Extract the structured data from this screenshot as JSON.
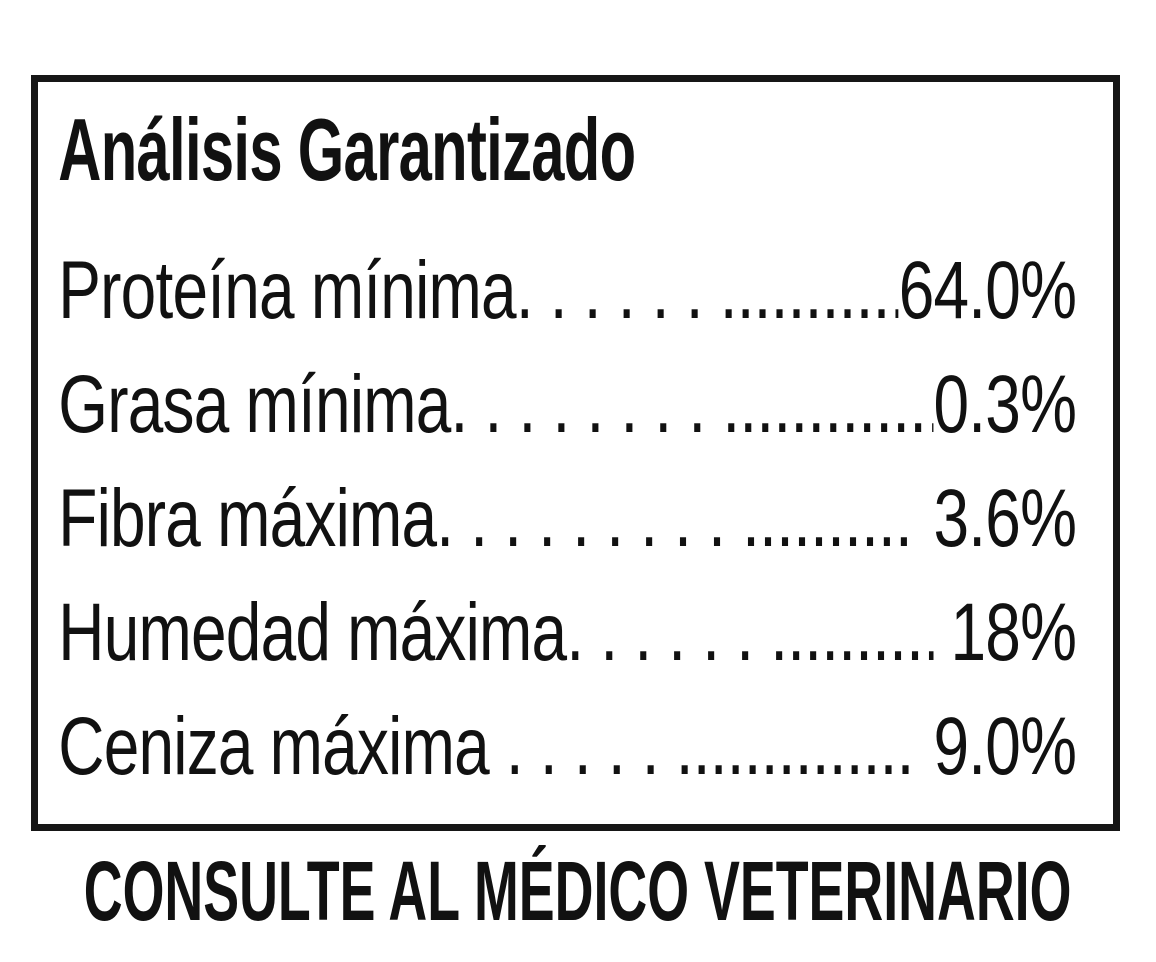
{
  "label": {
    "title": "Análisis Garantizado",
    "rows": [
      {
        "name": "Proteína mínima",
        "leader": ". . . . . . ..................................",
        "value": "64.0%"
      },
      {
        "name": "Grasa mínima",
        "leader": ". . . . . . . . ...............................",
        "value": "0.3%"
      },
      {
        "name": "Fibra máxima",
        "leader": ". . . . . . . . . ............................",
        "value": "3.6%"
      },
      {
        "name": "Humedad máxima",
        "leader": ". . . . . . ...............................",
        "value": "18%"
      },
      {
        "name": "Ceniza máxima",
        "leader": " . . . . . ................ . . .",
        "value": "9.0%"
      }
    ],
    "footer": "CONSULTE AL MÉDICO VETERINARIO"
  },
  "colors": {
    "text": "#111111",
    "border": "#161616",
    "background": "#ffffff"
  }
}
